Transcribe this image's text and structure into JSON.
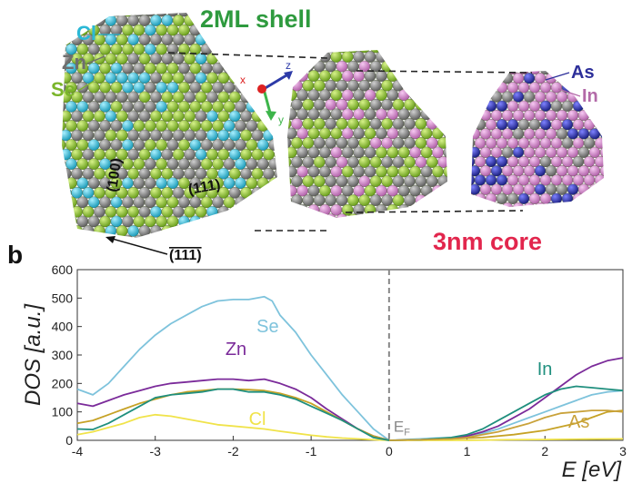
{
  "figure": {
    "labels": {
      "shell": "2ML shell",
      "core": "3nm core",
      "panel_b": "b",
      "cl": "Cl",
      "zn": "Zn",
      "se": "Se",
      "as": "As",
      "in": "In",
      "facet_100": "(100)",
      "facet_111": "(111)",
      "facet_bar": "(111)",
      "axis_x": "x",
      "axis_y": "y",
      "axis_z": "z"
    },
    "colors": {
      "shell_text": "#2e9a3e",
      "core_text": "#e2264d",
      "cl_text": "#2bb8d6",
      "zn_text": "#6e6e6e",
      "se_text": "#7ab52a",
      "as_text": "#2d2f9a",
      "in_text": "#b36aa8",
      "se_atom": "#8fc63a",
      "zn_atom": "#8a8a8a",
      "cl_atom": "#33c3dc",
      "in_atom": "#d98bd2",
      "as_atom": "#2b2fa8"
    }
  },
  "chart_data": {
    "type": "line",
    "xlabel": "E [eV]",
    "ylabel": "DOS [a.u.]",
    "xlim": [
      -4,
      3
    ],
    "ylim": [
      0,
      600
    ],
    "xticks": [
      -4,
      -3,
      -2,
      -1,
      0,
      1,
      2,
      3
    ],
    "yticks": [
      0,
      100,
      200,
      300,
      400,
      500,
      600
    ],
    "fermi": {
      "x": 0,
      "label": "E",
      "sub": "F"
    },
    "series": [
      {
        "name": "Se",
        "color": "#7ec3dc",
        "x": [
          -4.0,
          -3.8,
          -3.6,
          -3.4,
          -3.2,
          -3.0,
          -2.8,
          -2.6,
          -2.4,
          -2.2,
          -2.0,
          -1.8,
          -1.6,
          -1.5,
          -1.4,
          -1.2,
          -1.0,
          -0.8,
          -0.6,
          -0.5,
          -0.4,
          -0.2,
          0.0,
          0.4,
          0.6,
          0.8,
          1.0,
          1.2,
          1.4,
          1.6,
          1.8,
          2.0,
          2.2,
          2.4,
          2.6,
          2.8,
          3.0
        ],
        "y": [
          180,
          160,
          200,
          260,
          320,
          370,
          410,
          440,
          470,
          490,
          495,
          495,
          505,
          490,
          440,
          380,
          300,
          230,
          160,
          130,
          100,
          40,
          0,
          5,
          8,
          10,
          15,
          25,
          40,
          60,
          80,
          100,
          120,
          140,
          160,
          170,
          175
        ]
      },
      {
        "name": "Zn",
        "color": "#7b2b9a",
        "x": [
          -4.0,
          -3.8,
          -3.6,
          -3.4,
          -3.2,
          -3.0,
          -2.8,
          -2.6,
          -2.4,
          -2.2,
          -2.0,
          -1.8,
          -1.6,
          -1.4,
          -1.2,
          -1.0,
          -0.8,
          -0.6,
          -0.4,
          -0.2,
          0.0,
          0.4,
          0.8,
          1.0,
          1.2,
          1.4,
          1.6,
          1.8,
          2.0,
          2.2,
          2.4,
          2.6,
          2.8,
          3.0
        ],
        "y": [
          130,
          120,
          140,
          160,
          175,
          190,
          200,
          205,
          210,
          215,
          215,
          210,
          215,
          200,
          180,
          150,
          110,
          75,
          40,
          15,
          0,
          2,
          8,
          15,
          30,
          50,
          80,
          110,
          150,
          190,
          230,
          260,
          280,
          290
        ]
      },
      {
        "name": "Cl",
        "color": "#f0e34a",
        "x": [
          -4.0,
          -3.8,
          -3.6,
          -3.4,
          -3.2,
          -3.0,
          -2.8,
          -2.6,
          -2.4,
          -2.2,
          -2.0,
          -1.8,
          -1.6,
          -1.4,
          -1.2,
          -1.0,
          -0.8,
          -0.6,
          -0.4,
          -0.2,
          0.0,
          0.5,
          1.0,
          1.5,
          2.0,
          2.5,
          3.0
        ],
        "y": [
          20,
          30,
          45,
          60,
          80,
          90,
          85,
          75,
          65,
          55,
          50,
          45,
          40,
          32,
          25,
          18,
          12,
          8,
          5,
          2,
          0,
          0,
          0,
          2,
          3,
          4,
          5
        ]
      },
      {
        "name": "Se(olive)",
        "color": "#c6a226",
        "x": [
          -4.0,
          -3.8,
          -3.6,
          -3.4,
          -3.2,
          -3.0,
          -2.8,
          -2.6,
          -2.4,
          -2.2,
          -2.0,
          -1.8,
          -1.6,
          -1.4,
          -1.2,
          -1.0,
          -0.8,
          -0.6,
          -0.4,
          -0.2,
          0.0,
          0.4,
          0.8,
          1.2,
          1.6,
          2.0,
          2.4,
          2.6,
          2.8,
          3.0
        ],
        "y": [
          60,
          70,
          90,
          110,
          130,
          145,
          160,
          170,
          175,
          180,
          180,
          178,
          175,
          165,
          150,
          130,
          100,
          70,
          40,
          15,
          0,
          2,
          5,
          10,
          20,
          35,
          60,
          80,
          100,
          105
        ]
      },
      {
        "name": "In",
        "color": "#1f8f7e",
        "x": [
          -4.0,
          -3.8,
          -3.6,
          -3.4,
          -3.2,
          -3.0,
          -2.8,
          -2.6,
          -2.4,
          -2.2,
          -2.0,
          -1.8,
          -1.6,
          -1.4,
          -1.2,
          -1.0,
          -0.8,
          -0.6,
          -0.4,
          -0.2,
          0.0,
          0.4,
          0.8,
          1.0,
          1.2,
          1.4,
          1.6,
          1.8,
          2.0,
          2.2,
          2.4,
          2.6,
          2.8,
          3.0
        ],
        "y": [
          40,
          38,
          60,
          90,
          120,
          150,
          160,
          165,
          170,
          180,
          180,
          170,
          170,
          160,
          145,
          120,
          95,
          70,
          40,
          10,
          0,
          2,
          10,
          20,
          40,
          70,
          100,
          130,
          160,
          180,
          190,
          185,
          180,
          175
        ]
      },
      {
        "name": "As",
        "color": "#c9a23a",
        "x": [
          0.0,
          0.4,
          0.8,
          1.0,
          1.2,
          1.4,
          1.6,
          1.8,
          2.0,
          2.2,
          2.4,
          2.6,
          2.8,
          3.0
        ],
        "y": [
          0,
          2,
          5,
          10,
          20,
          30,
          45,
          60,
          80,
          95,
          100,
          105,
          105,
          100
        ]
      }
    ],
    "annotations": [
      {
        "text": "Se",
        "x": -1.7,
        "y": 380,
        "color": "#7ec3dc"
      },
      {
        "text": "Zn",
        "x": -2.1,
        "y": 300,
        "color": "#7b2b9a"
      },
      {
        "text": "Cl",
        "x": -1.8,
        "y": 55,
        "color": "#f0e34a"
      },
      {
        "text": "In",
        "x": 1.9,
        "y": 230,
        "color": "#1f8f7e"
      },
      {
        "text": "As",
        "x": 2.3,
        "y": 45,
        "color": "#c9a23a"
      }
    ]
  }
}
